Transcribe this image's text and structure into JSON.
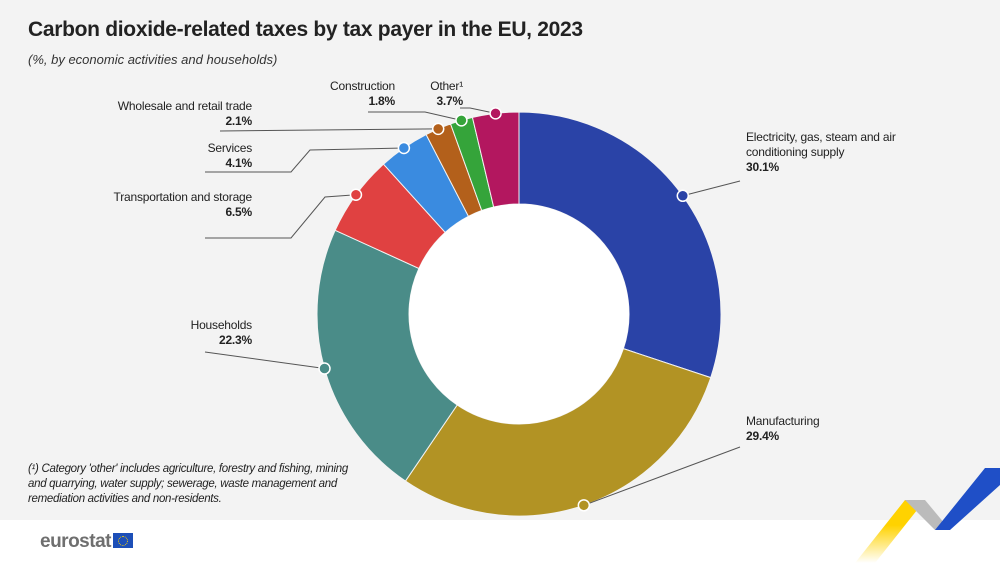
{
  "title": "Carbon dioxide-related taxes by tax payer in the EU, 2023",
  "subtitle": "(%, by economic activities and households)",
  "footnote": "(¹) Category 'other' includes agriculture, forestry and fishing, mining and quarrying, water supply; sewerage, waste management and remediation activities and non-residents.",
  "logo": "eurostat",
  "chart_data": {
    "type": "pie",
    "donut": true,
    "title": "Carbon dioxide-related taxes by tax payer in the EU, 2023",
    "subtitle": "(%, by economic activities and households)",
    "unit": "%",
    "slices": [
      {
        "label": "Electricity, gas, steam and air conditioning supply",
        "value": 30.1,
        "value_label": "30.1%",
        "color": "#2a43a7"
      },
      {
        "label": "Manufacturing",
        "value": 29.4,
        "value_label": "29.4%",
        "color": "#b29324"
      },
      {
        "label": "Households",
        "value": 22.3,
        "value_label": "22.3%",
        "color": "#4a8c88"
      },
      {
        "label": "Transportation and storage",
        "value": 6.5,
        "value_label": "6.5%",
        "color": "#e04141"
      },
      {
        "label": "Services",
        "value": 4.1,
        "value_label": "4.1%",
        "color": "#3a8be0"
      },
      {
        "label": "Wholesale and retail trade",
        "value": 2.1,
        "value_label": "2.1%",
        "color": "#b3601b"
      },
      {
        "label": "Construction",
        "value": 1.8,
        "value_label": "1.8%",
        "color": "#35a43a"
      },
      {
        "label": "Other¹",
        "value": 3.7,
        "value_label": "3.7%",
        "color": "#b3175f"
      }
    ]
  }
}
